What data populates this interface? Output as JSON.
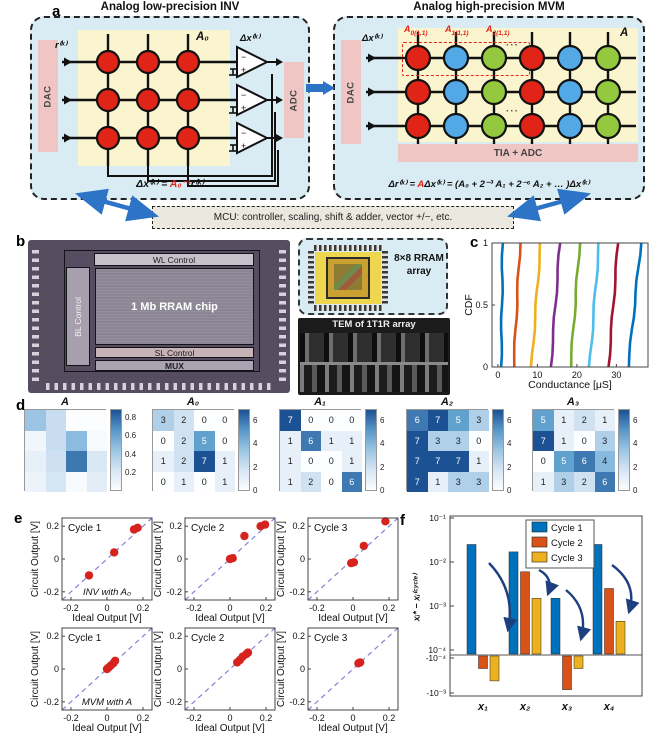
{
  "panels": {
    "a": "a",
    "b": "b",
    "c": "c",
    "d": "d",
    "e": "e",
    "f": "f"
  },
  "panel_a": {
    "left": {
      "title": "Analog low-precision INV",
      "dac_label": "DAC",
      "adc_label": "ADC",
      "matrix_label": "A₀",
      "input_label": "r⁽ᵏ⁾",
      "output_label": "Δx⁽ᵏ⁾",
      "equation": {
        "pre": "Δx⁽ᵏ⁾ = ",
        "red": "A₀⁻¹",
        "post": "r⁽ᵏ⁾"
      },
      "grid": {
        "rows": 3,
        "cols": 3,
        "cell_color": "#e02417"
      }
    },
    "right": {
      "title": "Analog high-precision MVM",
      "dac_label": "DAC",
      "tia_label": "TIA + ADC",
      "matrix_label": "A",
      "input_label": "Δx⁽ᵏ⁾",
      "cell_labels": [
        {
          "base": "A",
          "sub": "0(1,1)"
        },
        {
          "base": "A",
          "sub": "1(1,1)"
        },
        {
          "base": "A",
          "sub": "2(1,1)"
        }
      ],
      "ellipsis": "···",
      "equation": {
        "pre": "Δr⁽ᵏ⁾ = ",
        "red": "A",
        "post": "Δx⁽ᵏ⁾ = (A₀ + 2⁻³ A₁ + 2⁻⁶ A₂ + … )Δx⁽ᵏ⁾"
      },
      "grid": {
        "rows": 3,
        "col_colors": [
          "#e02417",
          "#52a9e6",
          "#94c83f",
          "#e02417",
          "#52a9e6",
          "#94c83f"
        ]
      }
    },
    "mcu_label": "MCU: controller, scaling, shift & adder, vector +/−, etc."
  },
  "panel_b": {
    "wl_label": "WL Control",
    "bl_label": "BL Control",
    "chip_label": "1 Mb RRAM chip",
    "sl_label": "SL Control",
    "mux_label": "MUX",
    "array_label": "8×8 RRAM array",
    "tem_label": "TEM of 1T1R array"
  },
  "chart_data": [
    {
      "id": "cdf",
      "type": "line",
      "panel": "c",
      "xlabel": "Conductance [μS]",
      "ylabel": "CDF",
      "xlim": [
        -1.5,
        38
      ],
      "ylim": [
        0,
        1
      ],
      "xticks": [
        0,
        10,
        20,
        30
      ],
      "yticks": [
        0,
        0.5,
        1
      ],
      "series": [
        {
          "color": "#0072BD",
          "x_at_cdf0": 0.8,
          "x_at_cdf1": 1.2
        },
        {
          "color": "#D95319",
          "x_at_cdf0": 4.0,
          "x_at_cdf1": 5.6
        },
        {
          "color": "#EDB120",
          "x_at_cdf0": 8.5,
          "x_at_cdf1": 10.8
        },
        {
          "color": "#7E2F8E",
          "x_at_cdf0": 13.4,
          "x_at_cdf1": 15.7
        },
        {
          "color": "#77AC30",
          "x_at_cdf0": 18.4,
          "x_at_cdf1": 20.7
        },
        {
          "color": "#4DBEEE",
          "x_at_cdf0": 23.2,
          "x_at_cdf1": 25.6
        },
        {
          "color": "#A2142F",
          "x_at_cdf0": 28.0,
          "x_at_cdf1": 30.4
        },
        {
          "color": "#0072BD",
          "x_at_cdf0": 33.0,
          "x_at_cdf1": 36.2
        }
      ]
    },
    {
      "id": "levels",
      "type": "heatmap",
      "panel": "d",
      "maps": [
        {
          "title": "A",
          "vmax": 0.9,
          "annotated": false,
          "colorbar_ticks": [
            0.2,
            0.4,
            0.6,
            0.8
          ],
          "values": [
            [
              0.45,
              0.3,
              0.01,
              0.01
            ],
            [
              0.07,
              0.3,
              0.5,
              0.04
            ],
            [
              0.13,
              0.27,
              0.78,
              0.2
            ],
            [
              0.1,
              0.22,
              0.03,
              0.16
            ]
          ]
        },
        {
          "title": "A₀",
          "vmax": 7,
          "annotated": true,
          "colorbar_ticks": [
            0,
            2,
            4,
            6
          ],
          "values": [
            [
              3,
              2,
              0,
              0
            ],
            [
              0,
              2,
              5,
              0
            ],
            [
              1,
              2,
              7,
              1
            ],
            [
              0,
              1,
              0,
              1
            ]
          ]
        },
        {
          "title": "A₁",
          "vmax": 7,
          "annotated": true,
          "colorbar_ticks": [
            0,
            2,
            4,
            6
          ],
          "values": [
            [
              7,
              0,
              0,
              0
            ],
            [
              1,
              6,
              1,
              1
            ],
            [
              1,
              0,
              0,
              1
            ],
            [
              1,
              2,
              0,
              6
            ]
          ]
        },
        {
          "title": "A₂",
          "vmax": 7,
          "annotated": true,
          "colorbar_ticks": [
            0,
            2,
            4,
            6
          ],
          "values": [
            [
              6,
              7,
              5,
              3
            ],
            [
              7,
              3,
              3,
              0
            ],
            [
              7,
              7,
              7,
              1
            ],
            [
              7,
              1,
              3,
              3
            ]
          ]
        },
        {
          "title": "A₃",
          "vmax": 7,
          "annotated": true,
          "colorbar_ticks": [
            0,
            2,
            4,
            6
          ],
          "values": [
            [
              5,
              1,
              2,
              1
            ],
            [
              7,
              1,
              0,
              3
            ],
            [
              0,
              5,
              6,
              4
            ],
            [
              1,
              3,
              2,
              6
            ]
          ]
        }
      ]
    },
    {
      "id": "accuracy",
      "type": "scatter",
      "panel": "e",
      "xlabel": "Ideal Output [V]",
      "ylabel": "Circuit Output [V]",
      "xlim": [
        -0.25,
        0.25
      ],
      "ylim": [
        -0.25,
        0.25
      ],
      "ticks": [
        -0.2,
        0,
        0.2
      ],
      "marker_color": "#D7231D",
      "plots": [
        {
          "title": "Cycle 1",
          "note": "INV with A₀",
          "points": [
            [
              -0.1,
              -0.1
            ],
            [
              0.04,
              0.04
            ],
            [
              0.15,
              0.18
            ],
            [
              0.17,
              0.19
            ]
          ]
        },
        {
          "title": "Cycle 2",
          "note": "",
          "points": [
            [
              0.0,
              0.0
            ],
            [
              0.015,
              0.005
            ],
            [
              0.08,
              0.14
            ],
            [
              0.17,
              0.2
            ],
            [
              0.195,
              0.21
            ]
          ]
        },
        {
          "title": "Cycle 3",
          "note": "",
          "points": [
            [
              -0.01,
              -0.025
            ],
            [
              0.005,
              -0.02
            ],
            [
              0.06,
              0.08
            ],
            [
              0.18,
              0.23
            ]
          ]
        },
        {
          "title": "Cycle 1",
          "note": "MVM with A",
          "points": [
            [
              0.0,
              0.0
            ],
            [
              0.01,
              0.01
            ],
            [
              0.02,
              0.02
            ],
            [
              0.035,
              0.035
            ],
            [
              0.045,
              0.05
            ]
          ]
        },
        {
          "title": "Cycle 2",
          "note": "",
          "points": [
            [
              0.04,
              0.04
            ],
            [
              0.055,
              0.055
            ],
            [
              0.07,
              0.075
            ],
            [
              0.09,
              0.09
            ],
            [
              0.1,
              0.1
            ]
          ]
        },
        {
          "title": "Cycle 3",
          "note": "",
          "points": [
            [
              0.03,
              0.035
            ],
            [
              0.04,
              0.04
            ]
          ]
        }
      ]
    },
    {
      "id": "convergence",
      "type": "bar",
      "panel": "f",
      "ylabel": "xᵢ* − xᵢ⁽ᶜʸᶜˡᵉ⁾",
      "categories": [
        "x₁",
        "x₂",
        "x₃",
        "x₄"
      ],
      "ytick_labels": [
        "10⁻¹",
        "10⁻²",
        "10⁻³",
        "10⁻⁴",
        "-10⁻⁴",
        "-10⁻³"
      ],
      "ytick_values": [
        0.1,
        0.01,
        0.001,
        0.0001,
        -0.0001,
        -0.001
      ],
      "series": [
        {
          "name": "Cycle 1",
          "color": "#0072BD",
          "values": [
            0.025,
            0.017,
            0.0015,
            0.025
          ]
        },
        {
          "name": "Cycle 2",
          "color": "#D95319",
          "values": [
            -0.0002,
            0.006,
            -0.0008,
            0.0025
          ]
        },
        {
          "name": "Cycle 3",
          "color": "#EDB120",
          "values": [
            -0.00045,
            0.0015,
            -0.0002,
            0.00045
          ]
        }
      ]
    }
  ]
}
